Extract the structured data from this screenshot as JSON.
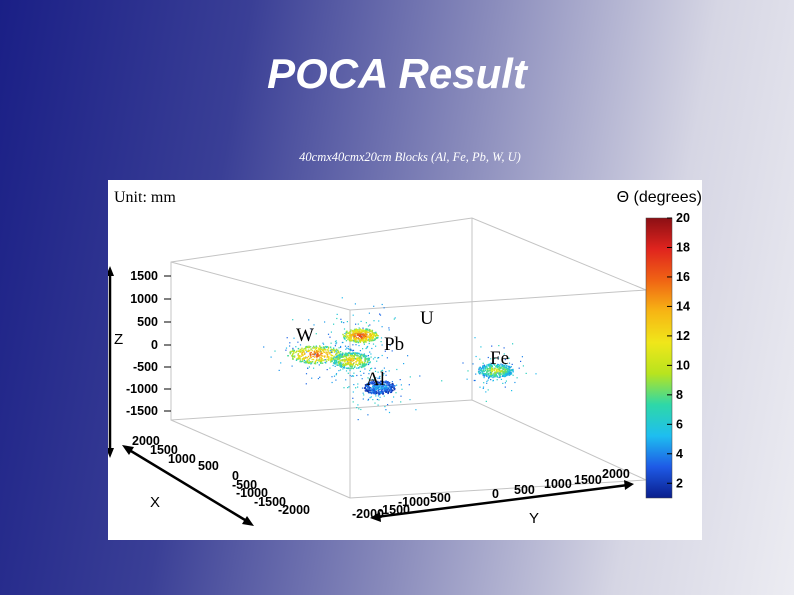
{
  "slide": {
    "title": "POCA Result",
    "subtitle": "40cmx40cmx20cm Blocks (Al, Fe, Pb, W, U)"
  },
  "chart_data": {
    "type": "scatter",
    "unit_label": "Unit: mm",
    "color_axis_label": "Θ (degrees)",
    "color_axis": {
      "range": [
        1,
        20
      ],
      "ticks": [
        2,
        4,
        6,
        8,
        10,
        12,
        14,
        16,
        18,
        20
      ],
      "colors": [
        "#0a1e8c",
        "#1e5ae6",
        "#1ebef0",
        "#2ed8a8",
        "#b8e41e",
        "#f0e61a",
        "#f7b514",
        "#f06414",
        "#e0241e",
        "#8c0f14"
      ]
    },
    "axes": {
      "x": {
        "label": "X",
        "ticks": [
          "2000",
          "1500",
          "1000",
          "500",
          "0",
          "-500",
          "-1000",
          "-1500",
          "-2000"
        ]
      },
      "y": {
        "label": "Y",
        "ticks": [
          "-2000",
          "-1500",
          "-1000",
          "500",
          "0",
          "500",
          "1000",
          "1500",
          "2000"
        ]
      },
      "z": {
        "label": "Z",
        "ticks": [
          "1500",
          "1000",
          "500",
          "0",
          "-500",
          "-1000",
          "-1500"
        ]
      }
    },
    "series": [
      {
        "label": "W",
        "center_theta": 17
      },
      {
        "label": "Pb",
        "center_theta": 14
      },
      {
        "label": "U",
        "center_theta": 18
      },
      {
        "label": "Fe",
        "center_theta": 11
      },
      {
        "label": "Al",
        "center_theta": 5
      }
    ]
  }
}
